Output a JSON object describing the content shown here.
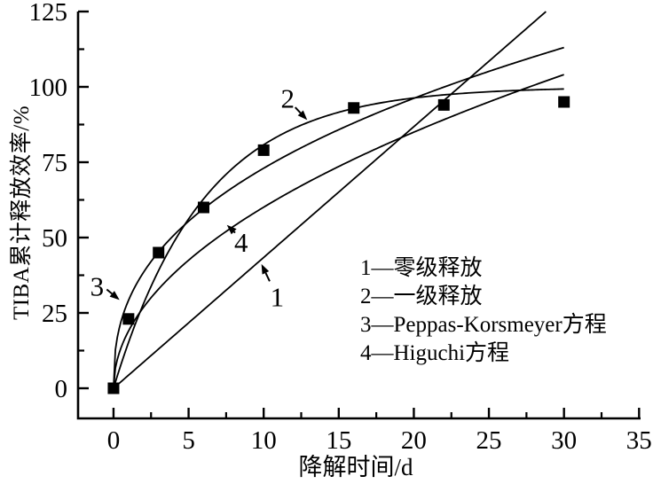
{
  "colors": {
    "ink": "#000000",
    "background": "#ffffff"
  },
  "chart_data": {
    "type": "line+scatter",
    "title": "",
    "xlabel": "降解时间/d",
    "ylabel": "TIBA累计释放效率/%",
    "xlim": [
      -2.36,
      35.1
    ],
    "ylim": [
      -10,
      125
    ],
    "x_ticks": [
      0,
      5,
      10,
      15,
      20,
      25,
      30,
      35
    ],
    "x_minor_step": 2.5,
    "y_ticks": [
      0,
      25,
      50,
      75,
      100,
      125
    ],
    "y_minor_step": 12.5,
    "grid": false,
    "scatter": {
      "marker": "filled-square",
      "points": [
        [
          0,
          0
        ],
        [
          1,
          23
        ],
        [
          3,
          45
        ],
        [
          6,
          60
        ],
        [
          10,
          79
        ],
        [
          16,
          93
        ],
        [
          22,
          94
        ],
        [
          30,
          95
        ]
      ]
    },
    "curves": [
      {
        "id": "1",
        "name": "零级释放",
        "model": "linear",
        "params": {
          "k": 4.34
        },
        "t_range": [
          0,
          28.8
        ]
      },
      {
        "id": "2",
        "name": "一级释放",
        "model": "first_order",
        "params": {
          "ymax": 100,
          "k": 0.165
        },
        "t_range": [
          0,
          30
        ]
      },
      {
        "id": "3",
        "name": "Peppas-Korsmeyer方程",
        "model": "power",
        "params": {
          "k": 29.2,
          "n": 0.398
        },
        "t_range": [
          0,
          30
        ]
      },
      {
        "id": "4",
        "name": "Higuchi方程",
        "model": "power",
        "params": {
          "k": 19.0,
          "n": 0.5
        },
        "t_range": [
          0,
          30
        ]
      }
    ],
    "legend": {
      "position": "inside-right",
      "items": [
        "1—零级释放",
        "2—一级释放",
        "3—Peppas-Korsmeyer方程",
        "4—Higuchi方程"
      ]
    },
    "annotations": [
      {
        "label": "1",
        "text_at": [
          10.9,
          30.5
        ],
        "arrow_from": [
          10.4,
          35.5
        ],
        "arrow_to": [
          9.85,
          41.2
        ]
      },
      {
        "label": "2",
        "text_at": [
          11.6,
          96.3
        ],
        "arrow_from": [
          12.1,
          93.2
        ],
        "arrow_to": [
          12.9,
          89.0
        ]
      },
      {
        "label": "3",
        "text_at": [
          -1.1,
          34.0
        ],
        "arrow_from": [
          -0.45,
          32.8
        ],
        "arrow_to": [
          0.4,
          29.3
        ]
      },
      {
        "label": "4",
        "text_at": [
          8.5,
          48.5
        ],
        "arrow_from": [
          8.1,
          51.6
        ],
        "arrow_to": [
          7.55,
          54.2
        ]
      }
    ]
  }
}
